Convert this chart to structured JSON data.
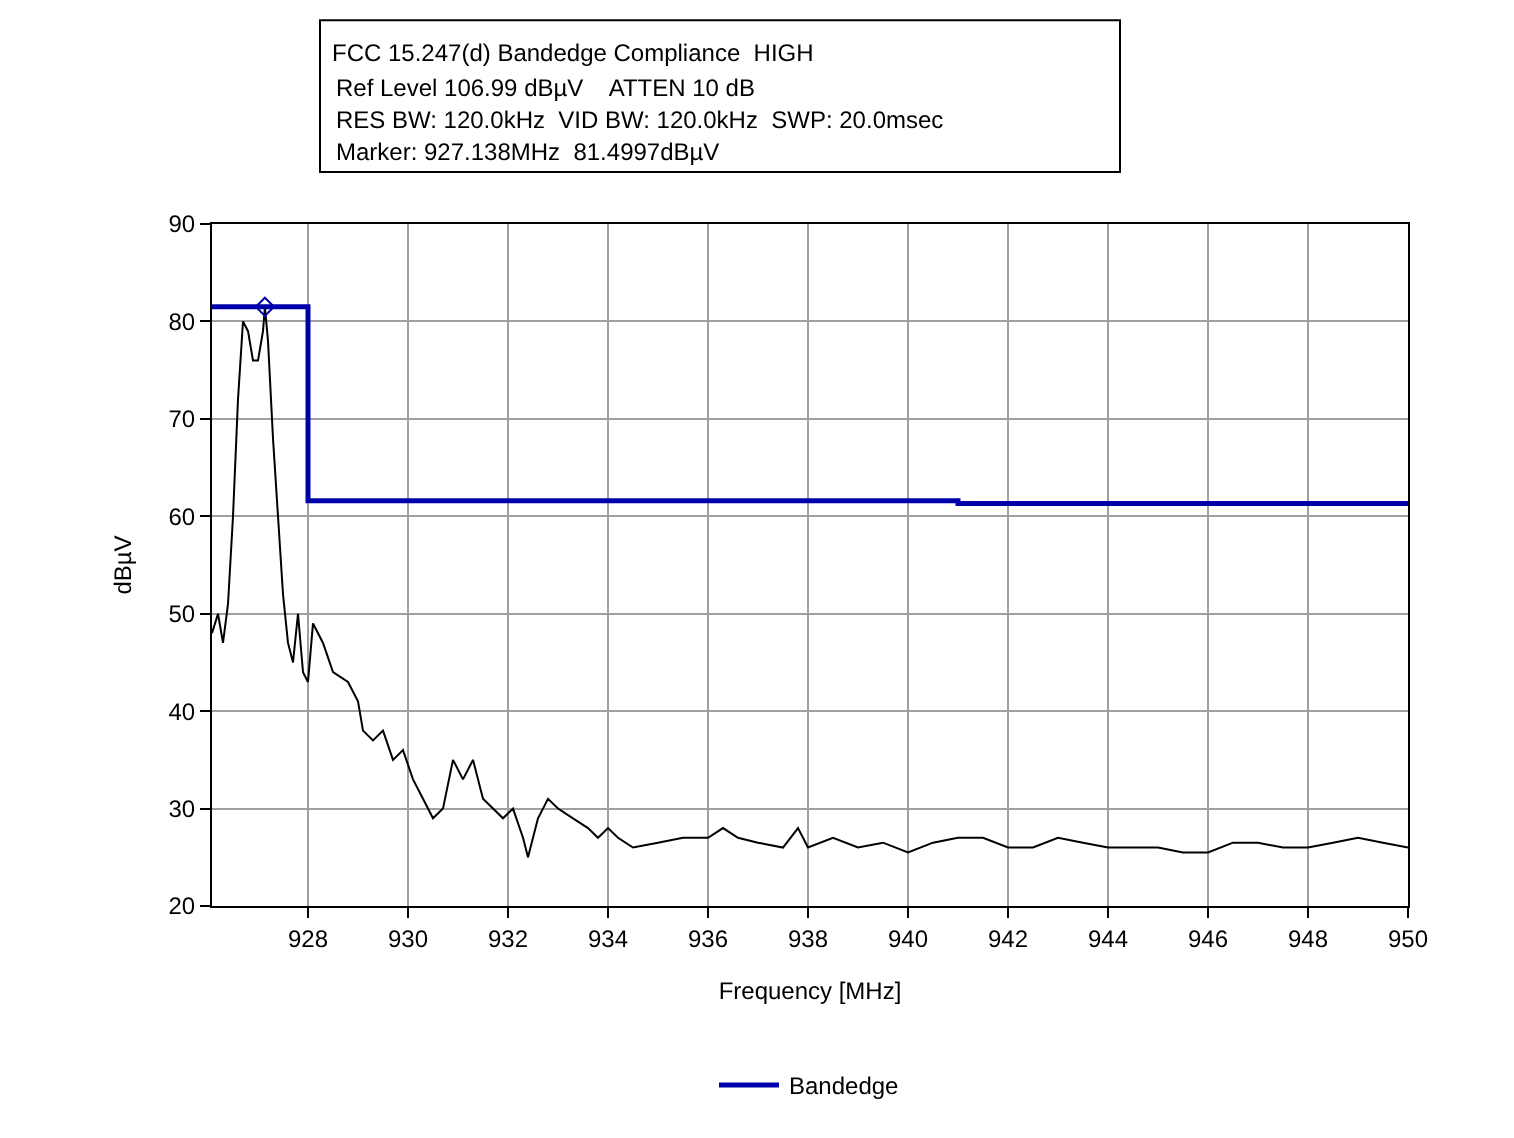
{
  "chart_data": {
    "type": "line",
    "title": "FCC 15.247(d) Bandedge Compliance  HIGH",
    "annotations": [
      "Ref Level 106.99 dBµV    ATTEN 10 dB",
      "RES BW: 120.0kHz  VID BW: 120.0kHz  SWP: 20.0msec",
      "Marker: 927.138MHz  81.4997dBµV"
    ],
    "xlabel": "Frequency [MHz]",
    "ylabel": "dBµV",
    "xlim": [
      926.08,
      950
    ],
    "ylim": [
      20,
      90
    ],
    "xticks": [
      928,
      930,
      932,
      934,
      936,
      938,
      940,
      942,
      944,
      946,
      948,
      950
    ],
    "yticks": [
      20,
      30,
      40,
      50,
      60,
      70,
      80,
      90
    ],
    "grid": true,
    "legend": "bottom",
    "marker": "none",
    "line_style": "solid",
    "series": [
      {
        "color": "#000000",
        "x": [
          926.08,
          926.2,
          926.3,
          926.4,
          926.5,
          926.6,
          926.7,
          926.8,
          926.9,
          927.0,
          927.1,
          927.138,
          927.2,
          927.3,
          927.4,
          927.5,
          927.6,
          927.7,
          927.8,
          927.9,
          928.0,
          928.1,
          928.3,
          928.5,
          928.8,
          929.0,
          929.1,
          929.3,
          929.5,
          929.7,
          929.9,
          930.1,
          930.3,
          930.5,
          930.7,
          930.9,
          931.1,
          931.3,
          931.5,
          931.7,
          931.9,
          932.1,
          932.3,
          932.4,
          932.6,
          932.8,
          933.0,
          933.3,
          933.6,
          933.8,
          934.0,
          934.2,
          934.5,
          935.0,
          935.5,
          936.0,
          936.3,
          936.6,
          937.0,
          937.5,
          937.8,
          938.0,
          938.5,
          939.0,
          939.5,
          940.0,
          940.5,
          941.0,
          941.5,
          942.0,
          942.5,
          943.0,
          943.5,
          944.0,
          944.5,
          945.0,
          945.5,
          946.0,
          946.5,
          947.0,
          947.5,
          948.0,
          948.5,
          949.0,
          949.5,
          950.0
        ],
        "values": [
          48,
          50,
          47,
          51,
          60,
          72,
          80,
          79,
          76,
          76,
          79,
          81.5,
          78,
          68,
          60,
          52,
          47,
          45,
          50,
          44,
          43,
          49,
          47,
          44,
          43,
          41,
          38,
          37,
          38,
          35,
          36,
          33,
          31,
          29,
          30,
          35,
          33,
          35,
          31,
          30,
          29,
          30,
          27,
          25,
          29,
          31,
          30,
          29,
          28,
          27,
          28,
          27,
          26,
          26.5,
          27,
          27,
          28,
          27,
          26.5,
          26,
          28,
          26,
          27,
          26,
          26.5,
          25.5,
          26.5,
          27,
          27,
          26,
          26,
          27,
          26.5,
          26,
          26,
          26,
          25.5,
          25.5,
          26.5,
          26.5,
          26,
          26,
          26.5,
          27,
          26.5,
          26
        ]
      },
      {
        "name": "Bandedge",
        "type": "step",
        "color": "#0000aa",
        "x": [
          926.08,
          928,
          941,
          950
        ],
        "values": [
          81.5,
          61.6,
          61.3,
          61.3
        ]
      },
      {
        "type": "scatter",
        "marker": "diamond",
        "color": "#0000aa",
        "x": [
          927.138
        ],
        "values": [
          81.5
        ]
      }
    ]
  }
}
